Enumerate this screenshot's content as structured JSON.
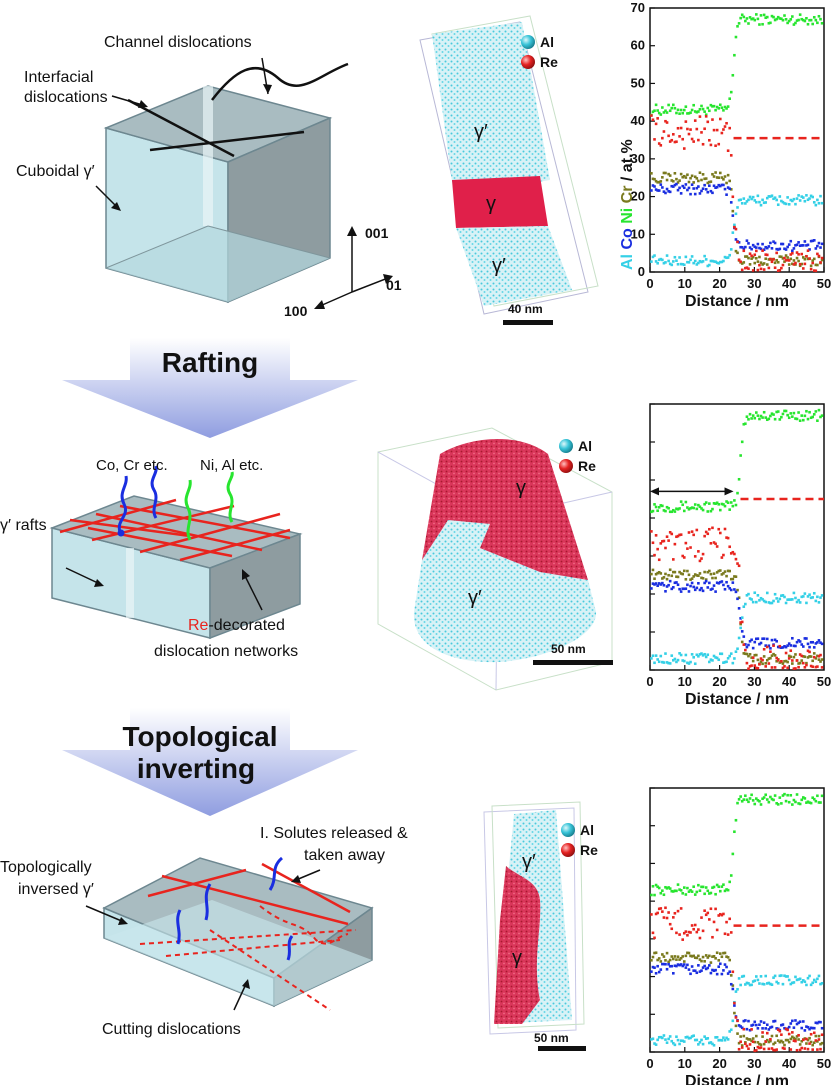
{
  "colors": {
    "Al": "#34d0e6",
    "Co": "#1a2ee0",
    "Ni": "#27e52f",
    "Cr": "#7a7a1e",
    "Re": "#e8241e",
    "box_face": "#c5e4ea",
    "arrow": "#8f9de0"
  },
  "row1": {
    "label_channel": "Channel dislocations",
    "label_interfacial_1": "Interfacial",
    "label_interfacial_2": "dislocations",
    "label_cuboidal": "Cuboidal γ′",
    "axis_001": "001",
    "axis_010": "01",
    "axis_100": "100",
    "apt_legend_al": "Al",
    "apt_legend_re": "Re",
    "apt_gp_top": "γ′",
    "apt_g": "γ",
    "apt_gp_bottom": "γ′",
    "scale": "40 nm"
  },
  "arrow1": {
    "label": "Rafting"
  },
  "row2": {
    "label_co_cr": "Co, Cr etc.",
    "label_ni_al": "Ni, Al etc.",
    "label_rafts": "γ′ rafts",
    "label_re": "Re",
    "label_decorated": "-decorated",
    "label_networks": "dislocation networks",
    "apt_legend_al": "Al",
    "apt_legend_re": "Re",
    "apt_g": "γ",
    "apt_gp": "γ′",
    "scale": "50 nm"
  },
  "arrow2": {
    "label_1": "Topological",
    "label_2": "inverting"
  },
  "row3": {
    "label_solutes_1": "I. Solutes released &",
    "label_solutes_2": "taken away",
    "label_topo_1": "Topologically",
    "label_topo_2": "inversed γ′",
    "label_cutting": "Cutting dislocations",
    "apt_legend_al": "Al",
    "apt_legend_re": "Re",
    "apt_gp": "γ′",
    "apt_g": "γ",
    "scale": "50 nm"
  },
  "chart_data": [
    {
      "type": "scatter",
      "ylabel": [
        "Al",
        "Co",
        "Ni",
        "Cr",
        "/ at.%"
      ],
      "xlabel": "Distance / nm",
      "xlim": [
        0,
        50
      ],
      "ylim": [
        0,
        70
      ],
      "xticks": [
        0,
        10,
        20,
        30,
        40,
        50
      ],
      "yticks": [
        0,
        10,
        20,
        30,
        40,
        50,
        60,
        70
      ],
      "interface_x": 24,
      "series": [
        {
          "name": "Ni",
          "color": "#27e52f",
          "left": 43,
          "right": 67
        },
        {
          "name": "Cr",
          "color": "#7a7a1e",
          "left": 25,
          "right": 3
        },
        {
          "name": "Co",
          "color": "#1a2ee0",
          "left": 22,
          "right": 7
        },
        {
          "name": "Al",
          "color": "#34d0e6",
          "left": 3,
          "right": 19
        },
        {
          "name": "Re",
          "color": "#e8241e",
          "left": 37,
          "right": 2
        }
      ],
      "dashed_line": {
        "y": 35.5,
        "from_x": 24,
        "to_x": 50
      }
    },
    {
      "type": "scatter",
      "xlabel": "Distance / nm",
      "xlim": [
        0,
        50
      ],
      "ylim": [
        0,
        70
      ],
      "xticks": [
        0,
        10,
        20,
        30,
        40,
        50
      ],
      "interface_x": 26,
      "series": [
        {
          "name": "Ni",
          "color": "#27e52f",
          "left": 43,
          "right": 67
        },
        {
          "name": "Cr",
          "color": "#7a7a1e",
          "left": 25,
          "right": 3
        },
        {
          "name": "Co",
          "color": "#1a2ee0",
          "left": 22,
          "right": 7
        },
        {
          "name": "Al",
          "color": "#34d0e6",
          "left": 3,
          "right": 19
        },
        {
          "name": "Re",
          "color": "#e8241e",
          "left": 33,
          "right": 2
        }
      ],
      "dashed_line": {
        "y": 45,
        "from_x": 26,
        "to_x": 50
      },
      "span_arrow": {
        "from_x": 0,
        "to_x": 24,
        "y": 47
      }
    },
    {
      "type": "scatter",
      "xlabel": "Distance / nm",
      "xlim": [
        0,
        50
      ],
      "ylim": [
        0,
        70
      ],
      "xticks": [
        0,
        10,
        20,
        30,
        40,
        50
      ],
      "interface_x": 24,
      "series": [
        {
          "name": "Ni",
          "color": "#27e52f",
          "left": 43,
          "right": 67
        },
        {
          "name": "Cr",
          "color": "#7a7a1e",
          "left": 25,
          "right": 3
        },
        {
          "name": "Co",
          "color": "#1a2ee0",
          "left": 22,
          "right": 7
        },
        {
          "name": "Al",
          "color": "#34d0e6",
          "left": 3,
          "right": 19
        },
        {
          "name": "Re",
          "color": "#e8241e",
          "left": 34,
          "right": 2
        }
      ],
      "dashed_line": {
        "y": 33.5,
        "from_x": 24,
        "to_x": 50
      }
    }
  ]
}
